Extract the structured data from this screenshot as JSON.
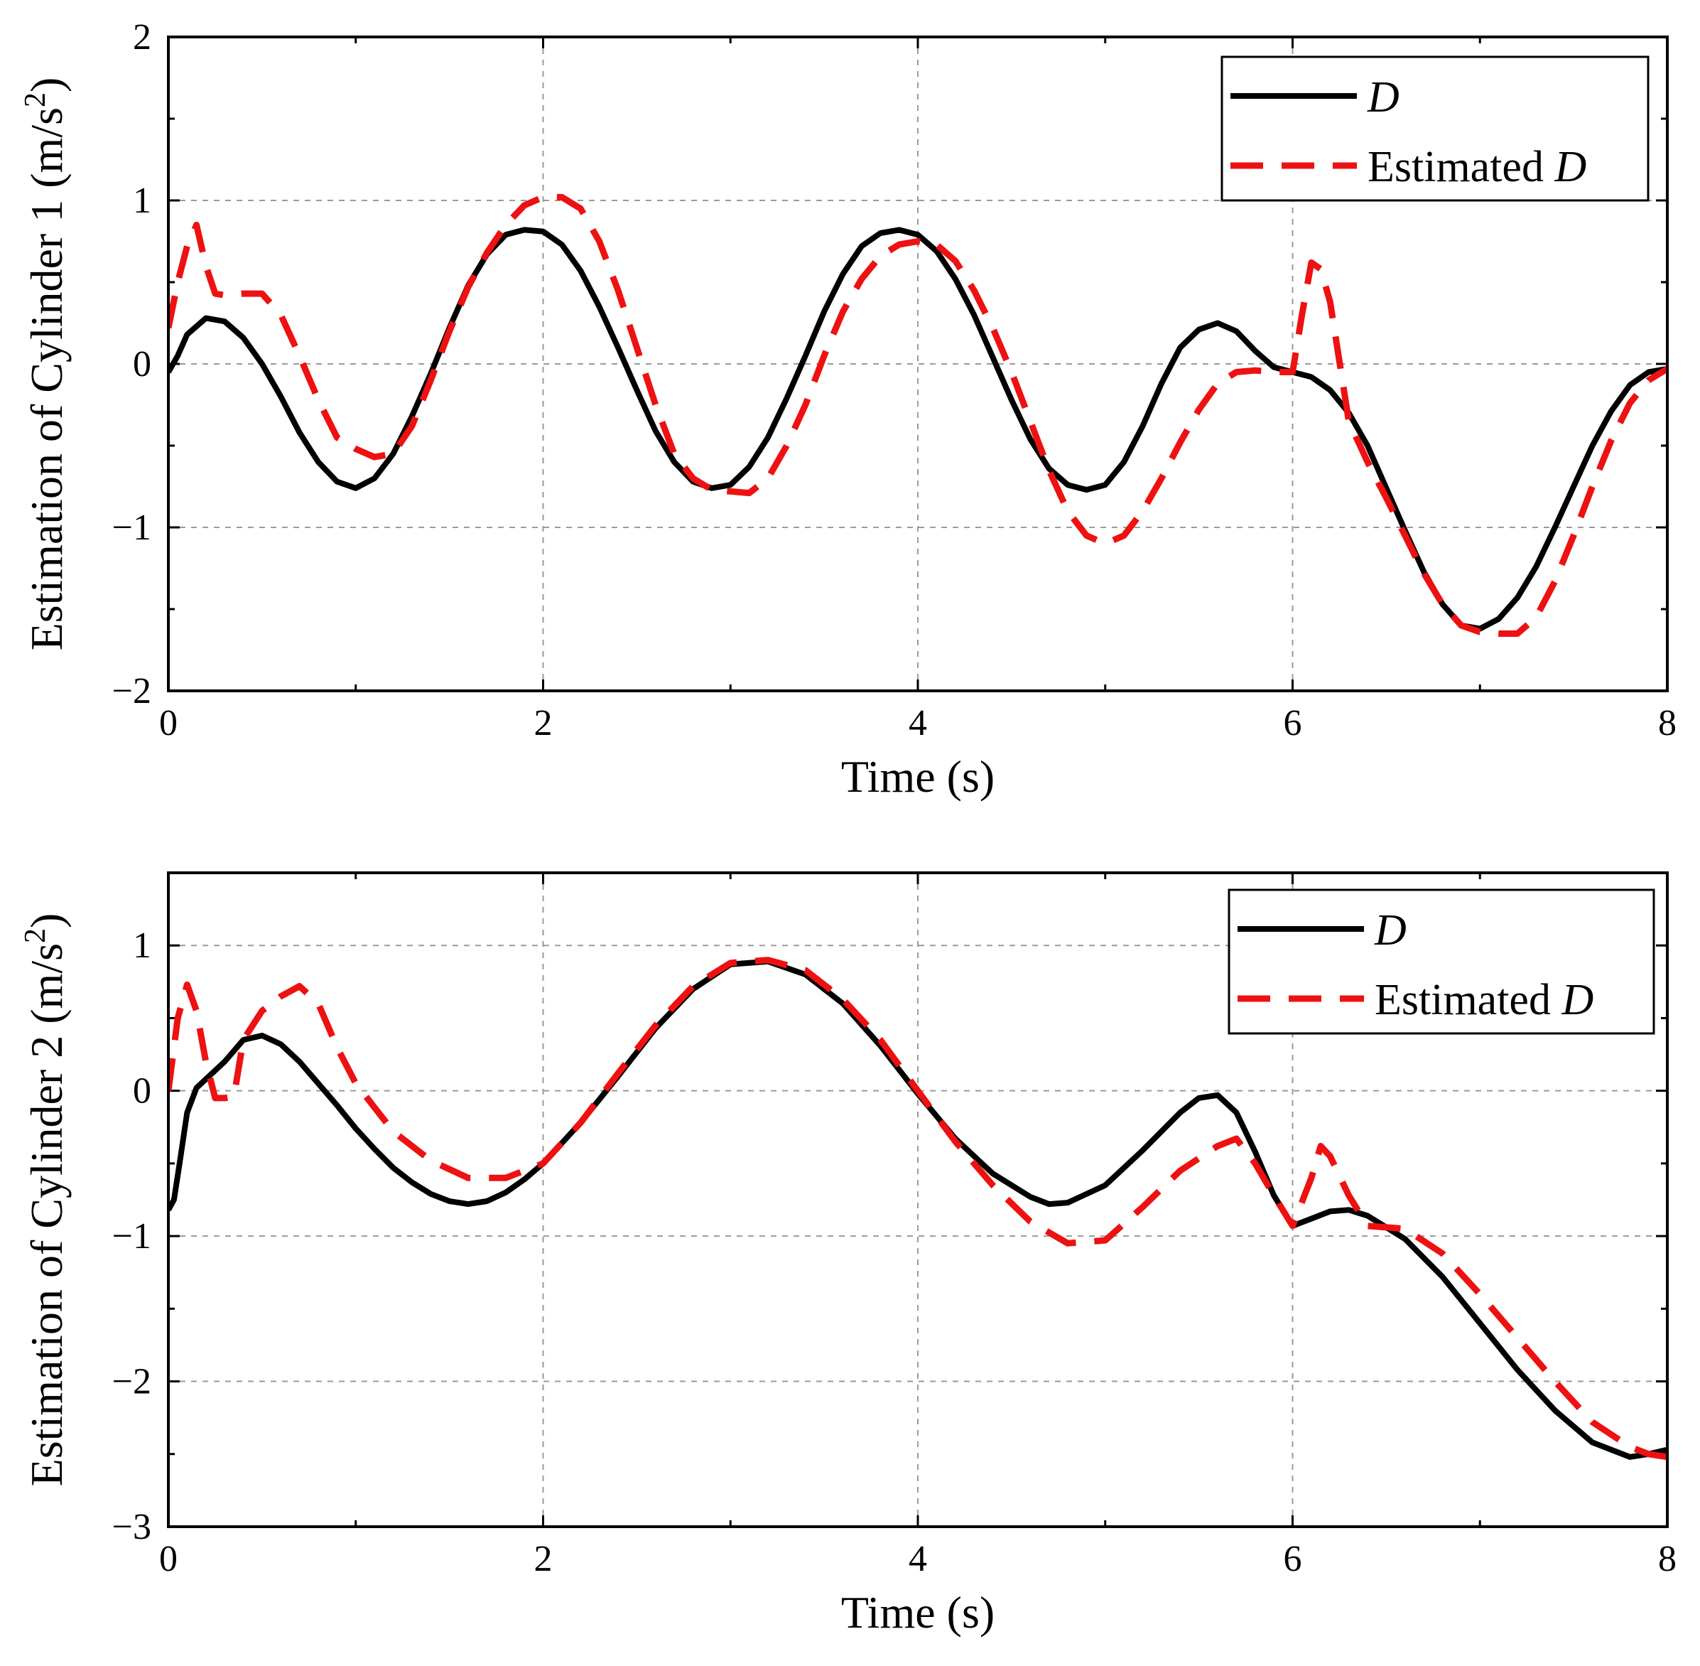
{
  "chart_data": [
    {
      "type": "line",
      "xlabel": "Time (s)",
      "ylabel_main": "Estimation of Cylinder 1 (m/s",
      "ylabel_sup": "2",
      "ylabel_close": ")",
      "xlim": [
        0,
        8
      ],
      "ylim": [
        -2,
        2
      ],
      "xticks": [
        0,
        2,
        4,
        6,
        8
      ],
      "yticks": [
        -2,
        -1,
        0,
        1,
        2
      ],
      "xtick_labels": [
        "0",
        "2",
        "4",
        "6",
        "8"
      ],
      "ytick_labels": [
        "−2",
        "−1",
        "0",
        "1",
        "2"
      ],
      "grid": true,
      "legend_position": "top-right",
      "series": [
        {
          "name": "D",
          "legend_prefix": "",
          "legend_italic": "D",
          "color": "#000000",
          "style": "solid",
          "x": [
            0,
            0.05,
            0.1,
            0.2,
            0.3,
            0.4,
            0.5,
            0.6,
            0.7,
            0.8,
            0.9,
            1.0,
            1.1,
            1.2,
            1.3,
            1.4,
            1.5,
            1.6,
            1.7,
            1.8,
            1.9,
            2.0,
            2.1,
            2.2,
            2.3,
            2.4,
            2.5,
            2.6,
            2.7,
            2.8,
            2.9,
            3.0,
            3.1,
            3.2,
            3.3,
            3.4,
            3.5,
            3.6,
            3.7,
            3.8,
            3.9,
            4.0,
            4.1,
            4.2,
            4.3,
            4.4,
            4.5,
            4.6,
            4.7,
            4.8,
            4.9,
            5.0,
            5.1,
            5.2,
            5.3,
            5.4,
            5.5,
            5.6,
            5.7,
            5.8,
            5.9,
            6.0,
            6.1,
            6.2,
            6.3,
            6.4,
            6.5,
            6.6,
            6.7,
            6.8,
            6.9,
            7.0,
            7.1,
            7.2,
            7.3,
            7.4,
            7.5,
            7.6,
            7.7,
            7.8,
            7.9,
            8.0
          ],
          "y": [
            -0.05,
            0.05,
            0.18,
            0.28,
            0.26,
            0.16,
            0.0,
            -0.2,
            -0.42,
            -0.6,
            -0.72,
            -0.76,
            -0.7,
            -0.55,
            -0.32,
            -0.06,
            0.22,
            0.48,
            0.67,
            0.79,
            0.82,
            0.81,
            0.73,
            0.57,
            0.35,
            0.1,
            -0.16,
            -0.41,
            -0.6,
            -0.72,
            -0.76,
            -0.74,
            -0.63,
            -0.45,
            -0.21,
            0.05,
            0.32,
            0.55,
            0.72,
            0.8,
            0.82,
            0.79,
            0.69,
            0.52,
            0.3,
            0.04,
            -0.22,
            -0.46,
            -0.64,
            -0.74,
            -0.77,
            -0.74,
            -0.6,
            -0.38,
            -0.12,
            0.1,
            0.21,
            0.25,
            0.2,
            0.08,
            -0.02,
            -0.05,
            -0.08,
            -0.16,
            -0.3,
            -0.5,
            -0.76,
            -1.02,
            -1.27,
            -1.47,
            -1.6,
            -1.62,
            -1.56,
            -1.43,
            -1.24,
            -1.0,
            -0.75,
            -0.5,
            -0.29,
            -0.13,
            -0.05,
            -0.03
          ]
        },
        {
          "name": "Estimated D",
          "legend_prefix": "Estimated ",
          "legend_italic": "D",
          "color": "#ee1111",
          "style": "dashed",
          "x": [
            0,
            0.05,
            0.1,
            0.15,
            0.2,
            0.25,
            0.3,
            0.4,
            0.5,
            0.6,
            0.7,
            0.8,
            0.9,
            1.0,
            1.1,
            1.2,
            1.3,
            1.4,
            1.5,
            1.6,
            1.7,
            1.8,
            1.9,
            2.0,
            2.1,
            2.2,
            2.3,
            2.4,
            2.5,
            2.6,
            2.7,
            2.8,
            2.9,
            3.0,
            3.1,
            3.2,
            3.3,
            3.4,
            3.5,
            3.6,
            3.7,
            3.8,
            3.9,
            4.0,
            4.1,
            4.2,
            4.3,
            4.4,
            4.5,
            4.6,
            4.7,
            4.8,
            4.9,
            5.0,
            5.1,
            5.2,
            5.3,
            5.4,
            5.5,
            5.6,
            5.7,
            5.8,
            5.9,
            6.0,
            6.05,
            6.1,
            6.15,
            6.2,
            6.3,
            6.4,
            6.5,
            6.6,
            6.7,
            6.8,
            6.9,
            7.0,
            7.1,
            7.2,
            7.3,
            7.4,
            7.5,
            7.6,
            7.7,
            7.8,
            7.9,
            8.0
          ],
          "y": [
            0.22,
            0.5,
            0.72,
            0.85,
            0.6,
            0.43,
            0.42,
            0.43,
            0.43,
            0.3,
            0.05,
            -0.22,
            -0.45,
            -0.52,
            -0.57,
            -0.55,
            -0.38,
            -0.1,
            0.2,
            0.47,
            0.68,
            0.85,
            0.97,
            1.02,
            1.02,
            0.95,
            0.75,
            0.45,
            0.1,
            -0.25,
            -0.55,
            -0.7,
            -0.77,
            -0.78,
            -0.79,
            -0.7,
            -0.5,
            -0.25,
            0.05,
            0.32,
            0.52,
            0.66,
            0.73,
            0.75,
            0.73,
            0.63,
            0.45,
            0.22,
            -0.05,
            -0.35,
            -0.65,
            -0.9,
            -1.05,
            -1.1,
            -1.05,
            -0.9,
            -0.7,
            -0.48,
            -0.28,
            -0.12,
            -0.05,
            -0.04,
            -0.05,
            -0.05,
            0.3,
            0.62,
            0.58,
            0.38,
            -0.35,
            -0.6,
            -0.82,
            -1.05,
            -1.28,
            -1.47,
            -1.6,
            -1.64,
            -1.65,
            -1.65,
            -1.55,
            -1.33,
            -1.05,
            -0.75,
            -0.47,
            -0.24,
            -0.1,
            -0.03
          ]
        }
      ]
    },
    {
      "type": "line",
      "xlabel": "Time (s)",
      "ylabel_main": "Estimation of Cylinder 2 (m/s",
      "ylabel_sup": "2",
      "ylabel_close": ")",
      "xlim": [
        0,
        8
      ],
      "ylim": [
        -3,
        1.5
      ],
      "xticks": [
        0,
        2,
        4,
        6,
        8
      ],
      "yticks": [
        -3,
        -2,
        -1,
        0,
        1
      ],
      "xtick_labels": [
        "0",
        "2",
        "4",
        "6",
        "8"
      ],
      "ytick_labels": [
        "−3",
        "−2",
        "−1",
        "0",
        "1"
      ],
      "grid": true,
      "legend_position": "top-right",
      "series": [
        {
          "name": "D",
          "legend_prefix": "",
          "legend_italic": "D",
          "color": "#000000",
          "style": "solid",
          "x": [
            0,
            0.03,
            0.06,
            0.1,
            0.15,
            0.2,
            0.3,
            0.4,
            0.5,
            0.6,
            0.7,
            0.8,
            0.9,
            1.0,
            1.1,
            1.2,
            1.3,
            1.4,
            1.5,
            1.6,
            1.7,
            1.8,
            1.9,
            2.0,
            2.2,
            2.4,
            2.6,
            2.8,
            3.0,
            3.2,
            3.4,
            3.6,
            3.8,
            4.0,
            4.2,
            4.4,
            4.6,
            4.7,
            4.8,
            5.0,
            5.2,
            5.4,
            5.5,
            5.6,
            5.7,
            5.8,
            5.9,
            6.0,
            6.1,
            6.2,
            6.3,
            6.4,
            6.6,
            6.8,
            7.0,
            7.2,
            7.4,
            7.6,
            7.8,
            7.9,
            8.0
          ],
          "y": [
            -0.82,
            -0.75,
            -0.5,
            -0.15,
            0.02,
            0.08,
            0.2,
            0.35,
            0.38,
            0.32,
            0.2,
            0.05,
            -0.1,
            -0.26,
            -0.4,
            -0.53,
            -0.63,
            -0.71,
            -0.76,
            -0.78,
            -0.76,
            -0.7,
            -0.61,
            -0.5,
            -0.22,
            0.1,
            0.43,
            0.7,
            0.87,
            0.89,
            0.8,
            0.6,
            0.31,
            -0.02,
            -0.33,
            -0.57,
            -0.73,
            -0.78,
            -0.77,
            -0.65,
            -0.41,
            -0.15,
            -0.05,
            -0.03,
            -0.15,
            -0.42,
            -0.72,
            -0.93,
            -0.88,
            -0.83,
            -0.82,
            -0.86,
            -1.02,
            -1.28,
            -1.6,
            -1.92,
            -2.2,
            -2.42,
            -2.52,
            -2.5,
            -2.47
          ]
        },
        {
          "name": "Estimated D",
          "legend_prefix": "Estimated ",
          "legend_italic": "D",
          "color": "#ee1111",
          "style": "dashed",
          "x": [
            0,
            0.05,
            0.1,
            0.15,
            0.2,
            0.25,
            0.3,
            0.35,
            0.4,
            0.5,
            0.6,
            0.7,
            0.8,
            0.9,
            1.0,
            1.2,
            1.4,
            1.6,
            1.8,
            2.0,
            2.2,
            2.4,
            2.6,
            2.8,
            3.0,
            3.2,
            3.4,
            3.6,
            3.8,
            4.0,
            4.2,
            4.4,
            4.6,
            4.8,
            5.0,
            5.2,
            5.4,
            5.6,
            5.7,
            5.8,
            5.9,
            6.0,
            6.1,
            6.15,
            6.2,
            6.3,
            6.4,
            6.6,
            6.8,
            7.0,
            7.2,
            7.4,
            7.6,
            7.8,
            7.9,
            8.0
          ],
          "y": [
            0.0,
            0.5,
            0.73,
            0.55,
            0.2,
            -0.05,
            -0.05,
            -0.04,
            0.35,
            0.55,
            0.65,
            0.72,
            0.6,
            0.3,
            0.05,
            -0.28,
            -0.48,
            -0.6,
            -0.6,
            -0.5,
            -0.22,
            0.12,
            0.45,
            0.72,
            0.88,
            0.9,
            0.83,
            0.63,
            0.35,
            0.0,
            -0.35,
            -0.65,
            -0.9,
            -1.05,
            -1.03,
            -0.8,
            -0.55,
            -0.38,
            -0.33,
            -0.5,
            -0.72,
            -0.93,
            -0.6,
            -0.38,
            -0.45,
            -0.72,
            -0.93,
            -0.95,
            -1.12,
            -1.4,
            -1.7,
            -2.0,
            -2.28,
            -2.45,
            -2.5,
            -2.52
          ]
        }
      ]
    }
  ]
}
